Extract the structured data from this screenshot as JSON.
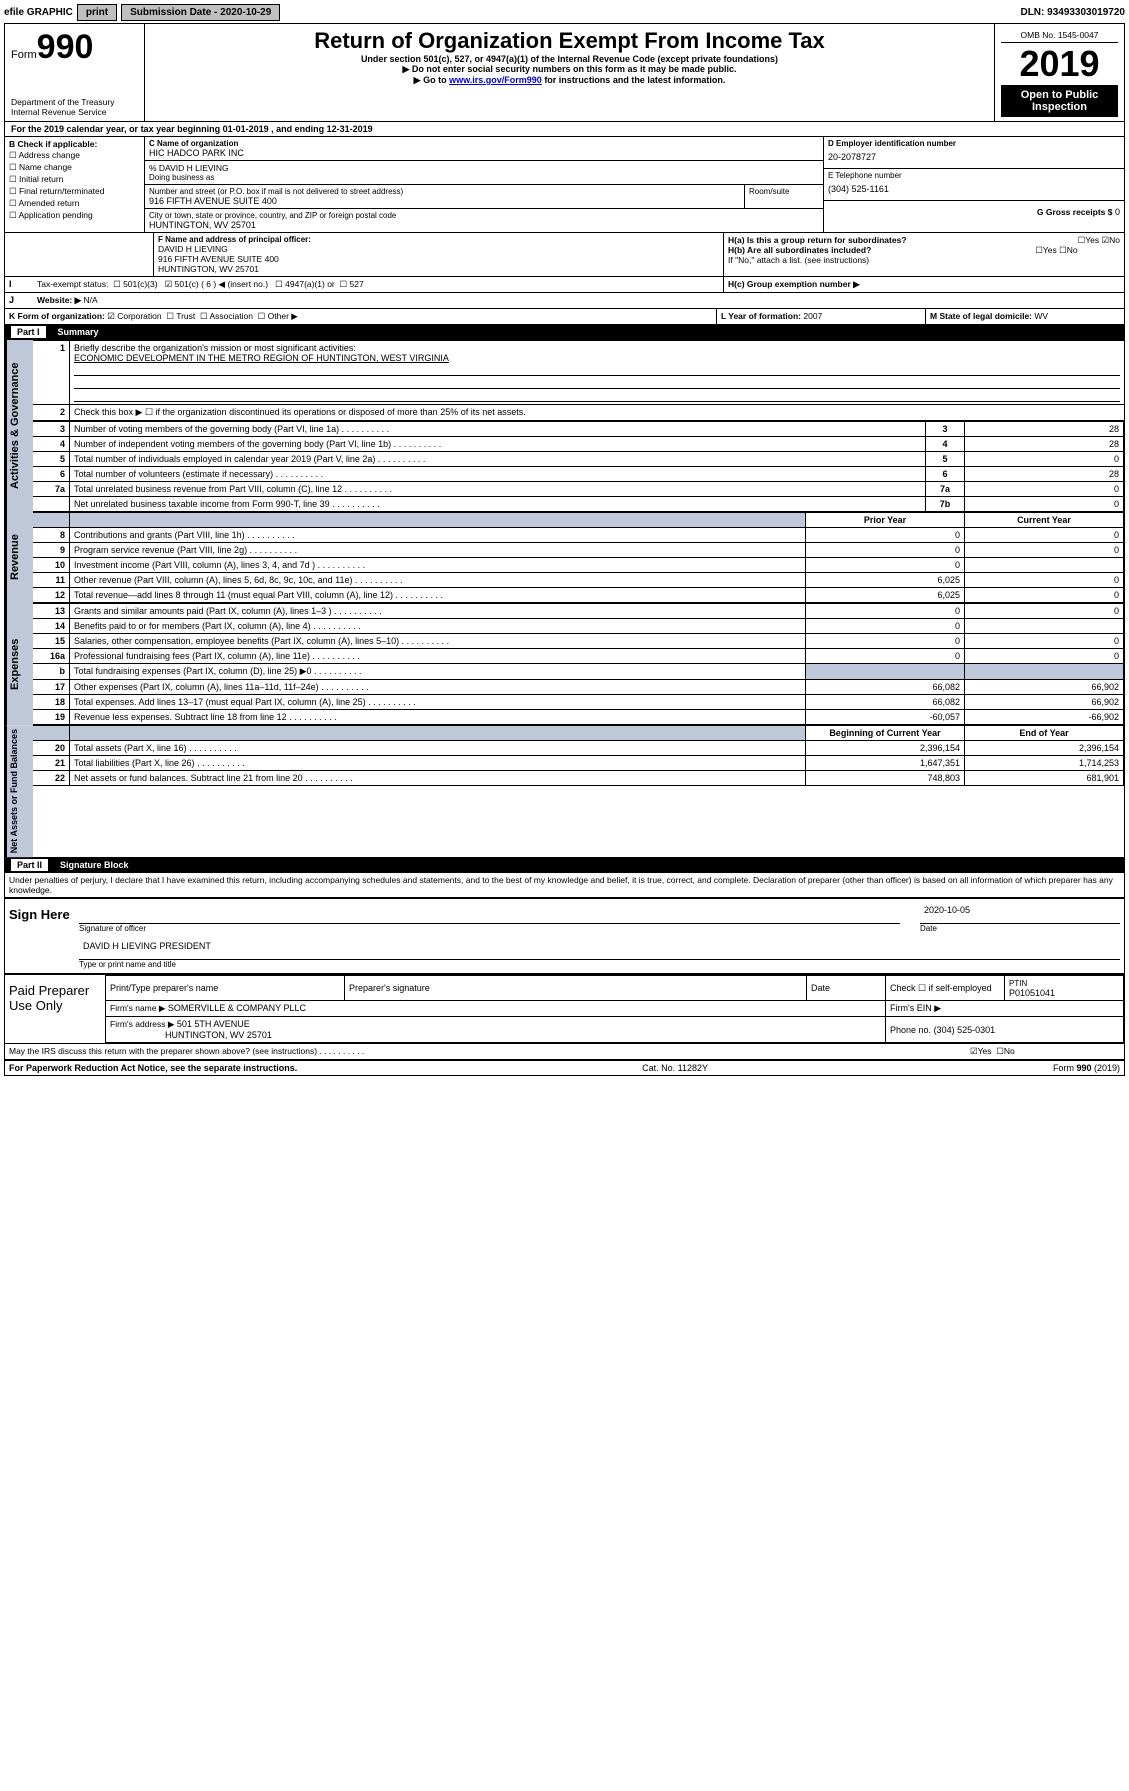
{
  "topbar": {
    "efile": "efile GRAPHIC",
    "print": "print",
    "subLabel": "Submission Date - 2020-10-29",
    "dln": "DLN: 93493303019720"
  },
  "header": {
    "formWord": "Form",
    "formNum": "990",
    "dept": "Department of the Treasury\nInternal Revenue Service",
    "title": "Return of Organization Exempt From Income Tax",
    "sub1": "Under section 501(c), 527, or 4947(a)(1) of the Internal Revenue Code (except private foundations)",
    "sub2": "▶ Do not enter social security numbers on this form as it may be made public.",
    "sub3_pre": "▶ Go to ",
    "sub3_link": "www.irs.gov/Form990",
    "sub3_post": " for instructions and the latest information.",
    "omb": "OMB No. 1545-0047",
    "year": "2019",
    "open": "Open to Public Inspection"
  },
  "A": {
    "text": "For the 2019 calendar year, or tax year beginning 01-01-2019    , and ending 12-31-2019"
  },
  "B": {
    "label": "B Check if applicable:",
    "opts": [
      "Address change",
      "Name change",
      "Initial return",
      "Final return/terminated",
      "Amended return",
      "Application pending"
    ]
  },
  "C": {
    "nameLabel": "C Name of organization",
    "name": "HIC HADCO PARK INC",
    "careOf": "% DAVID H LIEVING",
    "dba": "Doing business as",
    "addrLabel": "Number and street (or P.O. box if mail is not delivered to street address)",
    "room": "Room/suite",
    "addr": "916 FIFTH AVENUE SUITE 400",
    "cityLabel": "City or town, state or province, country, and ZIP or foreign postal code",
    "city": "HUNTINGTON, WV  25701"
  },
  "D": {
    "label": "D Employer identification number",
    "val": "20-2078727"
  },
  "E": {
    "label": "E Telephone number",
    "val": "(304) 525-1161"
  },
  "G": {
    "label": "G Gross receipts $",
    "val": "0"
  },
  "F": {
    "label": "F  Name and address of principal officer:",
    "name": "DAVID H LIEVING",
    "addr1": "916 FIFTH AVENUE SUITE 400",
    "addr2": "HUNTINGTON, WV  25701"
  },
  "H": {
    "a": "H(a)  Is this a group return for subordinates?",
    "aYes": "Yes",
    "aNo": "No",
    "b": "H(b)  Are all subordinates included?",
    "bYes": "Yes",
    "bNo": "No",
    "bNote": "If \"No,\" attach a list. (see instructions)",
    "c": "H(c)  Group exemption number ▶"
  },
  "I": {
    "label": "Tax-exempt status:",
    "o1": "501(c)(3)",
    "o2": "501(c) ( 6 ) ◀ (insert no.)",
    "o3": "4947(a)(1) or",
    "o4": "527"
  },
  "J": {
    "label": "Website: ▶",
    "val": "N/A"
  },
  "K": {
    "label": "K Form of organization:",
    "o1": "Corporation",
    "o2": "Trust",
    "o3": "Association",
    "o4": "Other ▶"
  },
  "L": {
    "label": "L Year of formation:",
    "val": "2007"
  },
  "M": {
    "label": "M State of legal domicile:",
    "val": "WV"
  },
  "part1": {
    "hdr": "Part I",
    "title": "Summary"
  },
  "summary": {
    "groups": {
      "ag": "Activities & Governance",
      "rev": "Revenue",
      "exp": "Expenses",
      "na": "Net Assets or Fund Balances"
    },
    "q1": "Briefly describe the organization's mission or most significant activities:",
    "q1a": "ECONOMIC DEVELOPMENT IN THE METRO REGION OF HUNTINGTON, WEST VIRGINIA",
    "q2": "Check this box ▶ ☐  if the organization discontinued its operations or disposed of more than 25% of its net assets.",
    "rows": [
      {
        "n": "3",
        "t": "Number of voting members of the governing body (Part VI, line 1a)",
        "box": "3",
        "v": "28"
      },
      {
        "n": "4",
        "t": "Number of independent voting members of the governing body (Part VI, line 1b)",
        "box": "4",
        "v": "28"
      },
      {
        "n": "5",
        "t": "Total number of individuals employed in calendar year 2019 (Part V, line 2a)",
        "box": "5",
        "v": "0"
      },
      {
        "n": "6",
        "t": "Total number of volunteers (estimate if necessary)",
        "box": "6",
        "v": "28"
      },
      {
        "n": "7a",
        "t": "Total unrelated business revenue from Part VIII, column (C), line 12",
        "box": "7a",
        "v": "0"
      },
      {
        "n": "",
        "t": "Net unrelated business taxable income from Form 990-T, line 39",
        "box": "7b",
        "v": "0"
      }
    ],
    "colhdr": {
      "prior": "Prior Year",
      "curr": "Current Year",
      "beg": "Beginning of Current Year",
      "end": "End of Year"
    },
    "rev": [
      {
        "n": "8",
        "t": "Contributions and grants (Part VIII, line 1h)",
        "p": "0",
        "c": "0"
      },
      {
        "n": "9",
        "t": "Program service revenue (Part VIII, line 2g)",
        "p": "0",
        "c": "0"
      },
      {
        "n": "10",
        "t": "Investment income (Part VIII, column (A), lines 3, 4, and 7d )",
        "p": "0",
        "c": ""
      },
      {
        "n": "11",
        "t": "Other revenue (Part VIII, column (A), lines 5, 6d, 8c, 9c, 10c, and 11e)",
        "p": "6,025",
        "c": "0"
      },
      {
        "n": "12",
        "t": "Total revenue—add lines 8 through 11 (must equal Part VIII, column (A), line 12)",
        "p": "6,025",
        "c": "0"
      }
    ],
    "exp": [
      {
        "n": "13",
        "t": "Grants and similar amounts paid (Part IX, column (A), lines 1–3 )",
        "p": "0",
        "c": "0"
      },
      {
        "n": "14",
        "t": "Benefits paid to or for members (Part IX, column (A), line 4)",
        "p": "0",
        "c": ""
      },
      {
        "n": "15",
        "t": "Salaries, other compensation, employee benefits (Part IX, column (A), lines 5–10)",
        "p": "0",
        "c": "0"
      },
      {
        "n": "16a",
        "t": "Professional fundraising fees (Part IX, column (A), line 11e)",
        "p": "0",
        "c": "0"
      },
      {
        "n": "b",
        "t": "Total fundraising expenses (Part IX, column (D), line 25) ▶0",
        "p": "",
        "c": "",
        "grey": true
      },
      {
        "n": "17",
        "t": "Other expenses (Part IX, column (A), lines 11a–11d, 11f–24e)",
        "p": "66,082",
        "c": "66,902"
      },
      {
        "n": "18",
        "t": "Total expenses. Add lines 13–17 (must equal Part IX, column (A), line 25)",
        "p": "66,082",
        "c": "66,902"
      },
      {
        "n": "19",
        "t": "Revenue less expenses. Subtract line 18 from line 12",
        "p": "-60,057",
        "c": "-66,902"
      }
    ],
    "na": [
      {
        "n": "20",
        "t": "Total assets (Part X, line 16)",
        "p": "2,396,154",
        "c": "2,396,154"
      },
      {
        "n": "21",
        "t": "Total liabilities (Part X, line 26)",
        "p": "1,647,351",
        "c": "1,714,253"
      },
      {
        "n": "22",
        "t": "Net assets or fund balances. Subtract line 21 from line 20",
        "p": "748,803",
        "c": "681,901"
      }
    ]
  },
  "part2": {
    "hdr": "Part II",
    "title": "Signature Block"
  },
  "sigText": "Under penalties of perjury, I declare that I have examined this return, including accompanying schedules and statements, and to the best of my knowledge and belief, it is true, correct, and complete. Declaration of preparer (other than officer) is based on all information of which preparer has any knowledge.",
  "sign": {
    "here": "Sign Here",
    "sigLabel": "Signature of officer",
    "date": "2020-10-05",
    "dateLabel": "Date",
    "name": "DAVID H LIEVING  PRESIDENT",
    "nameLabel": "Type or print name and title"
  },
  "paid": {
    "label": "Paid Preparer Use Only",
    "h1": "Print/Type preparer's name",
    "h2": "Preparer's signature",
    "h3": "Date",
    "h4a": "Check ☐ if self-employed",
    "h4b": "PTIN",
    "ptin": "P01051041",
    "firmLabel": "Firm's name    ▶",
    "firm": "SOMERVILLE & COMPANY PLLC",
    "einLabel": "Firm's EIN ▶",
    "addrLabel": "Firm's address ▶",
    "addr1": "501 5TH AVENUE",
    "addr2": "HUNTINGTON, WV  25701",
    "phoneLabel": "Phone no.",
    "phone": "(304) 525-0301"
  },
  "discuss": {
    "q": "May the IRS discuss this return with the preparer shown above? (see instructions)",
    "yes": "Yes",
    "no": "No"
  },
  "footer": {
    "left": "For Paperwork Reduction Act Notice, see the separate instructions.",
    "mid": "Cat. No. 11282Y",
    "right": "Form 990 (2019)"
  }
}
